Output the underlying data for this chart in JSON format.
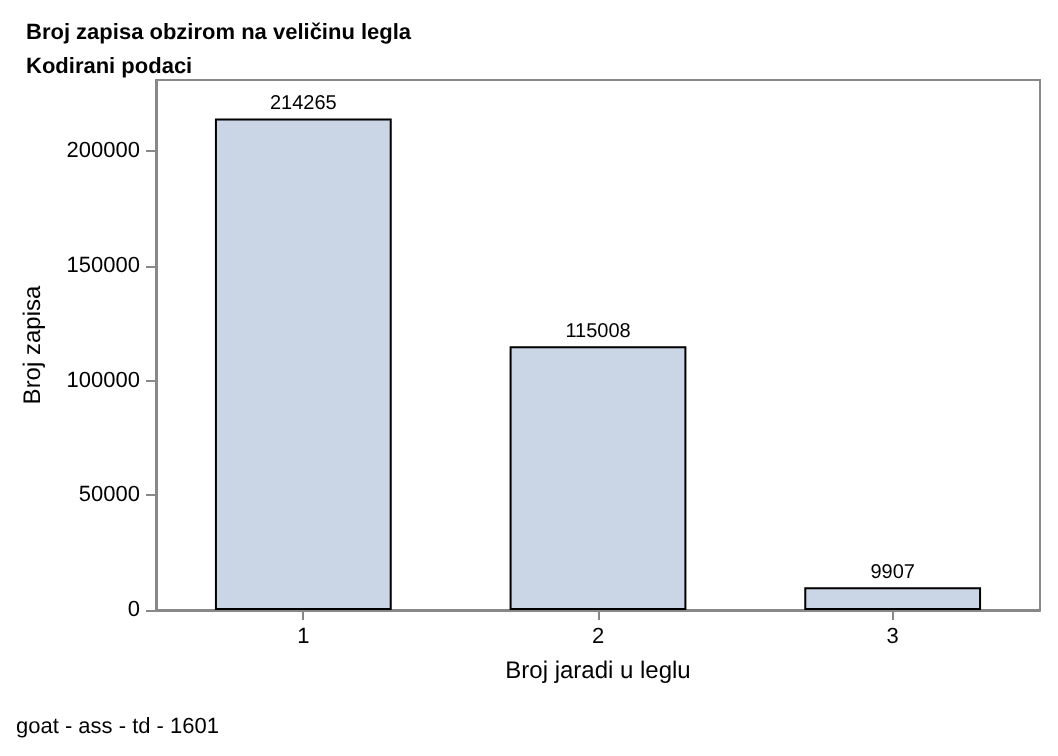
{
  "chart_data": {
    "type": "bar",
    "title": "Broj zapisa obzirom na veličinu legla",
    "subtitle": "Kodirani podaci",
    "xlabel": "Broj jaradi u leglu",
    "ylabel": "Broj zapisa",
    "annotations": [
      "goat - ass - td - 1601"
    ],
    "categories": [
      "1",
      "2",
      "3"
    ],
    "values": [
      214265,
      115008,
      9907
    ],
    "color": "#cad5e5",
    "ylim": [
      0,
      231000
    ],
    "yticks": [
      0,
      50000,
      100000,
      150000,
      200000
    ],
    "grid": false,
    "data_labels": true
  }
}
